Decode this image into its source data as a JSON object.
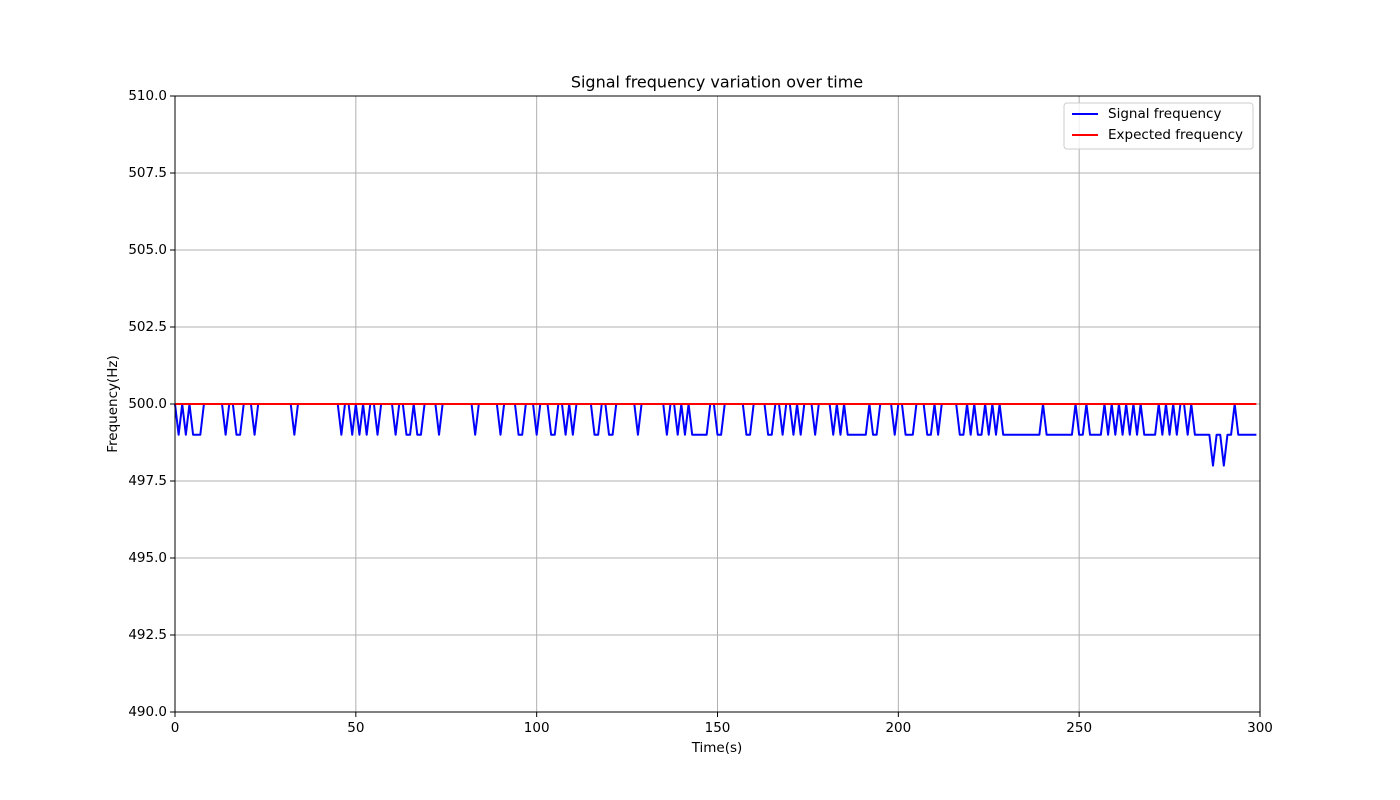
{
  "chart_data": {
    "type": "line",
    "title": "Signal frequency variation over time",
    "xlabel": "Time(s)",
    "ylabel": "Frequency(Hz)",
    "xlim": [
      0,
      300
    ],
    "xticks": [
      0,
      50,
      100,
      150,
      200,
      250,
      300
    ],
    "ylim": [
      490,
      510
    ],
    "yticks": [
      {
        "value": 490,
        "label": "490.0"
      },
      {
        "value": 492.5,
        "label": "492.5"
      },
      {
        "value": 495,
        "label": "495.0"
      },
      {
        "value": 497.5,
        "label": "497.5"
      },
      {
        "value": 500,
        "label": "500.0"
      },
      {
        "value": 502.5,
        "label": "502.5"
      },
      {
        "value": 505,
        "label": "505.0"
      },
      {
        "value": 507.5,
        "label": "507.5"
      },
      {
        "value": 510,
        "label": "510.0"
      }
    ],
    "grid": true,
    "legend": "upper-right",
    "series": [
      {
        "name": "Signal frequency",
        "color": "#0000ff",
        "x": [
          0,
          1,
          2,
          3,
          4,
          5,
          6,
          7,
          8,
          9,
          10,
          11,
          12,
          13,
          14,
          15,
          16,
          17,
          18,
          19,
          20,
          21,
          22,
          23,
          24,
          25,
          26,
          27,
          28,
          29,
          30,
          31,
          32,
          33,
          34,
          35,
          36,
          37,
          38,
          39,
          40,
          41,
          42,
          43,
          44,
          45,
          46,
          47,
          48,
          49,
          50,
          51,
          52,
          53,
          54,
          55,
          56,
          57,
          58,
          59,
          60,
          61,
          62,
          63,
          64,
          65,
          66,
          67,
          68,
          69,
          70,
          71,
          72,
          73,
          74,
          75,
          76,
          77,
          78,
          79,
          80,
          81,
          82,
          83,
          84,
          85,
          86,
          87,
          88,
          89,
          90,
          91,
          92,
          93,
          94,
          95,
          96,
          97,
          98,
          99,
          100,
          101,
          102,
          103,
          104,
          105,
          106,
          107,
          108,
          109,
          110,
          111,
          112,
          113,
          114,
          115,
          116,
          117,
          118,
          119,
          120,
          121,
          122,
          123,
          124,
          125,
          126,
          127,
          128,
          129,
          130,
          131,
          132,
          133,
          134,
          135,
          136,
          137,
          138,
          139,
          140,
          141,
          142,
          143,
          144,
          145,
          146,
          147,
          148,
          149,
          150,
          151,
          152,
          153,
          154,
          155,
          156,
          157,
          158,
          159,
          160,
          161,
          162,
          163,
          164,
          165,
          166,
          167,
          168,
          169,
          170,
          171,
          172,
          173,
          174,
          175,
          176,
          177,
          178,
          179,
          180,
          181,
          182,
          183,
          184,
          185,
          186,
          187,
          188,
          189,
          190,
          191,
          192,
          193,
          194,
          195,
          196,
          197,
          198,
          199,
          200,
          201,
          202,
          203,
          204,
          205,
          206,
          207,
          208,
          209,
          210,
          211,
          212,
          213,
          214,
          215,
          216,
          217,
          218,
          219,
          220,
          221,
          222,
          223,
          224,
          225,
          226,
          227,
          228,
          229,
          230,
          231,
          232,
          233,
          234,
          235,
          236,
          237,
          238,
          239,
          240,
          241,
          242,
          243,
          244,
          245,
          246,
          247,
          248,
          249,
          250,
          251,
          252,
          253,
          254,
          255,
          256,
          257,
          258,
          259,
          260,
          261,
          262,
          263,
          264,
          265,
          266,
          267,
          268,
          269,
          270,
          271,
          272,
          273,
          274,
          275,
          276,
          277,
          278,
          279,
          280,
          281,
          282,
          283,
          284,
          285,
          286,
          287,
          288,
          289,
          290,
          291,
          292,
          293,
          294,
          295,
          296,
          297,
          298,
          299
        ],
        "values": [
          500,
          499,
          500,
          499,
          500,
          499,
          499,
          499,
          500,
          500,
          500,
          500,
          500,
          500,
          499,
          500,
          500,
          499,
          499,
          500,
          500,
          500,
          499,
          500,
          500,
          500,
          500,
          500,
          500,
          500,
          500,
          500,
          500,
          499,
          500,
          500,
          500,
          500,
          500,
          500,
          500,
          500,
          500,
          500,
          500,
          500,
          499,
          500,
          500,
          499,
          500,
          499,
          500,
          499,
          500,
          500,
          499,
          500,
          500,
          500,
          500,
          499,
          500,
          500,
          499,
          499,
          500,
          499,
          499,
          500,
          500,
          500,
          500,
          499,
          500,
          500,
          500,
          500,
          500,
          500,
          500,
          500,
          500,
          499,
          500,
          500,
          500,
          500,
          500,
          500,
          499,
          500,
          500,
          500,
          500,
          499,
          499,
          500,
          500,
          500,
          499,
          500,
          500,
          500,
          499,
          499,
          500,
          500,
          499,
          500,
          499,
          500,
          500,
          500,
          500,
          500,
          499,
          499,
          500,
          500,
          499,
          499,
          500,
          500,
          500,
          500,
          500,
          500,
          499,
          500,
          500,
          500,
          500,
          500,
          500,
          500,
          499,
          500,
          500,
          499,
          500,
          499,
          500,
          499,
          499,
          499,
          499,
          499,
          500,
          500,
          499,
          499,
          500,
          500,
          500,
          500,
          500,
          500,
          499,
          499,
          500,
          500,
          500,
          500,
          499,
          499,
          500,
          500,
          499,
          500,
          500,
          499,
          500,
          499,
          500,
          500,
          500,
          499,
          500,
          500,
          500,
          500,
          499,
          500,
          499,
          500,
          499,
          499,
          499,
          499,
          499,
          499,
          500,
          499,
          499,
          500,
          500,
          500,
          500,
          499,
          500,
          500,
          499,
          499,
          499,
          500,
          500,
          500,
          499,
          499,
          500,
          499,
          500,
          500,
          500,
          500,
          500,
          499,
          499,
          500,
          499,
          500,
          499,
          499,
          500,
          499,
          500,
          499,
          500,
          499,
          499,
          499,
          499,
          499,
          499,
          499,
          499,
          499,
          499,
          499,
          500,
          499,
          499,
          499,
          499,
          499,
          499,
          499,
          499,
          500,
          499,
          499,
          500,
          499,
          499,
          499,
          499,
          500,
          499,
          500,
          499,
          500,
          499,
          500,
          499,
          500,
          499,
          500,
          499,
          499,
          499,
          499,
          500,
          499,
          500,
          499,
          500,
          499,
          500,
          500,
          499,
          500,
          499,
          499,
          499,
          499,
          499,
          498,
          499,
          499,
          498,
          499,
          499,
          500,
          499,
          499,
          499,
          499,
          499,
          499
        ]
      },
      {
        "name": "Expected frequency",
        "color": "#ff0000",
        "x": [
          0,
          299
        ],
        "values": [
          500,
          500
        ]
      }
    ]
  }
}
